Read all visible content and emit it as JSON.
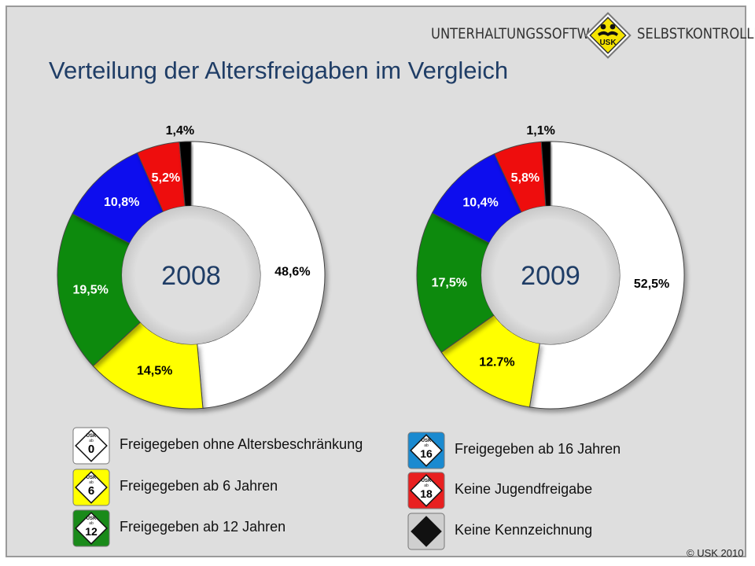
{
  "header": {
    "logo_left": "UNTERHALTUNGSSOFTWARE",
    "logo_right": "SELBSTKONTROLLE",
    "logo_badge": "USK",
    "title": "Verteilung der Altersfreigaben im Vergleich"
  },
  "colors": {
    "ohne": "#ffffff",
    "ab6": "#ffff00",
    "ab12": "#108a10",
    "ab16": "#1010ee",
    "keine_jugend": "#ee1010",
    "keine_kenn": "#000000"
  },
  "chart_data": [
    {
      "type": "pie",
      "center_label": "2008",
      "labels": [
        "Freigegeben ohne Altersbeschränkung",
        "Freigegeben ab 6 Jahren",
        "Freigegeben ab 12 Jahren",
        "Freigegeben ab 16 Jahren",
        "Keine Jugendfreigabe",
        "Keine Kennzeichnung"
      ],
      "values": [
        48.6,
        14.5,
        19.5,
        10.8,
        5.2,
        1.4
      ],
      "value_labels": [
        "48,6%",
        "14,5%",
        "19,5%",
        "10,8%",
        "5,2%",
        "1,4%"
      ]
    },
    {
      "type": "pie",
      "center_label": "2009",
      "labels": [
        "Freigegeben ohne Altersbeschränkung",
        "Freigegeben ab 6 Jahren",
        "Freigegeben ab 12 Jahren",
        "Freigegeben ab 16 Jahren",
        "Keine Jugendfreigabe",
        "Keine Kennzeichnung"
      ],
      "values": [
        52.5,
        12.7,
        17.5,
        10.4,
        5.8,
        1.1
      ],
      "value_labels": [
        "52,5%",
        "12.7%",
        "17,5%",
        "10,4%",
        "5,8%",
        "1,1%"
      ]
    }
  ],
  "legend": [
    {
      "label": "Freigegeben ohne Altersbeschränkung",
      "badge": "0",
      "icon": "usk-0-icon"
    },
    {
      "label": "Freigegeben ab 6 Jahren",
      "badge": "6",
      "icon": "usk-6-icon"
    },
    {
      "label": "Freigegeben ab 12 Jahren",
      "badge": "12",
      "icon": "usk-12-icon"
    },
    {
      "label": "Freigegeben ab 16 Jahren",
      "badge": "16",
      "icon": "usk-16-icon"
    },
    {
      "label": "Keine Jugendfreigabe",
      "badge": "18",
      "icon": "usk-18-icon"
    },
    {
      "label": "Keine Kennzeichnung",
      "badge": "",
      "icon": "no-rating-icon"
    }
  ],
  "usk_small": "USK",
  "usk_ab": "ab",
  "footer": {
    "copyright": "© USK 2010"
  }
}
